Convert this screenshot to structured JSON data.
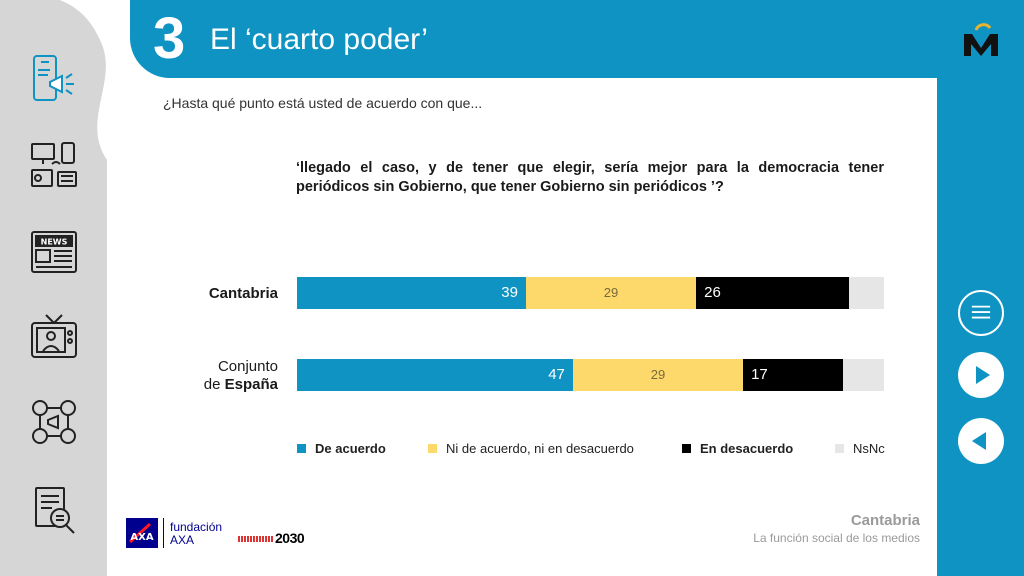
{
  "header": {
    "section_number": "3",
    "title": "El ‘cuarto poder’"
  },
  "question": {
    "intro": "¿Hasta qué punto está usted de acuerdo con que...",
    "text": "‘llegado el caso, y de tener que elegir, sería mejor para la democracia tener periódicos sin Gobierno, que tener Gobierno sin periódicos ’?"
  },
  "chart_data": {
    "type": "bar",
    "stacked": true,
    "orientation": "horizontal",
    "categories": [
      "Cantabria",
      "Conjunto de España"
    ],
    "category_labels": [
      {
        "plain": "",
        "bold": "Cantabria"
      },
      {
        "plain": "Conjunto",
        "plain2": "de ",
        "bold": "España"
      }
    ],
    "series": [
      {
        "name": "De acuerdo",
        "values": [
          39,
          47
        ],
        "color": "#0e93c3",
        "label_color": "#ffffff"
      },
      {
        "name": "Ni de acuerdo, ni en desacuerdo",
        "values": [
          29,
          29
        ],
        "color": "#fcd96a",
        "label_color": "#7a6a3a"
      },
      {
        "name": "En desacuerdo",
        "values": [
          26,
          17
        ],
        "color": "#000000",
        "label_color": "#ffffff"
      },
      {
        "name": "NsNc",
        "values": [
          6,
          7
        ],
        "color": "#e6e6e6",
        "label_color": "#777777"
      }
    ],
    "legend": {
      "position": "bottom",
      "bold": [
        true,
        false,
        true,
        false
      ]
    },
    "xlim": [
      0,
      100
    ],
    "grid": false
  },
  "footer": {
    "region": "Cantabria",
    "subtitle": "La función social de los medios",
    "fundacion": "fundación",
    "axa": "AXA",
    "logo_2030": "2030"
  },
  "icons": {
    "sidebar": [
      "smartphone-megaphone-icon",
      "devices-icon",
      "newspaper-icon",
      "tv-presenter-icon",
      "social-media-icon",
      "document-search-icon"
    ],
    "nav": [
      "menu-icon",
      "next-icon",
      "previous-icon"
    ]
  },
  "colors": {
    "accent": "#0e93c3",
    "sidebar": "#d6d6d6"
  }
}
